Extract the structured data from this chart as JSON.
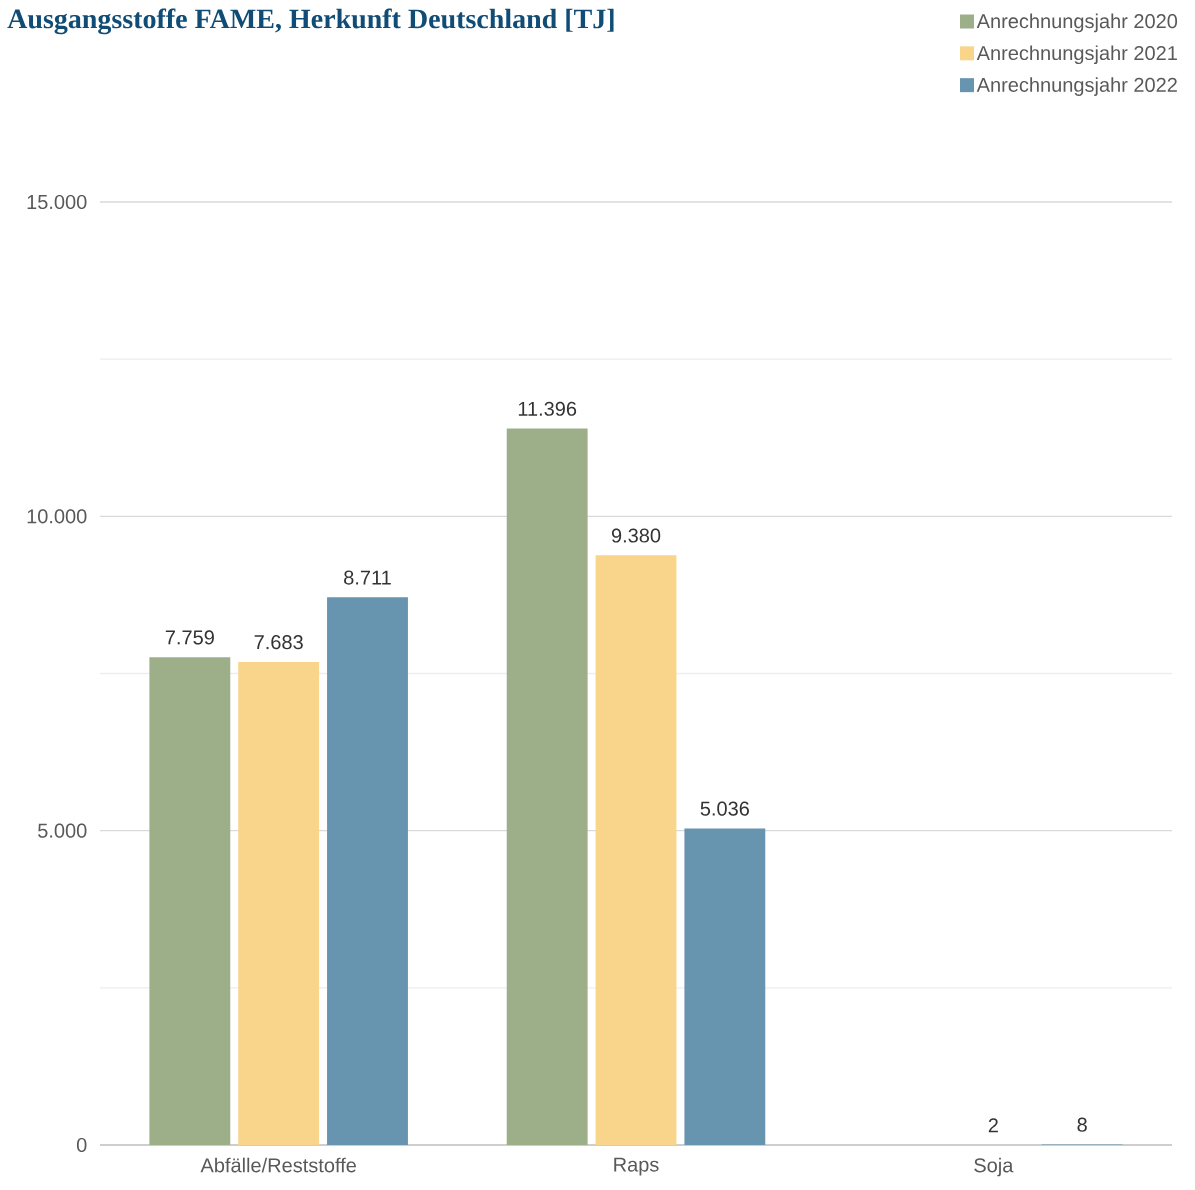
{
  "chart_data": {
    "type": "bar",
    "title": "Ausgangsstoffe FAME, Herkunft Deutschland [TJ]",
    "categories": [
      "Abfälle/Reststoffe",
      "Raps",
      "Soja"
    ],
    "series": [
      {
        "name": "Anrechnungsjahr 2020",
        "color": "#9caf88",
        "values": [
          7759,
          11396,
          null
        ],
        "value_labels": [
          "7.759",
          "11.396",
          null
        ]
      },
      {
        "name": "Anrechnungsjahr 2021",
        "color": "#f8d58b",
        "values": [
          7683,
          9380,
          2
        ],
        "value_labels": [
          "7.683",
          "9.380",
          "2"
        ]
      },
      {
        "name": "Anrechnungsjahr 2022",
        "color": "#6795b0",
        "values": [
          8711,
          5036,
          8
        ],
        "value_labels": [
          "8.711",
          "5.036",
          "8"
        ]
      }
    ],
    "ylim": [
      0,
      15000
    ],
    "yticks": [
      {
        "value": 0,
        "label": "0"
      },
      {
        "value": 2500,
        "label": null
      },
      {
        "value": 5000,
        "label": "5.000"
      },
      {
        "value": 7500,
        "label": null
      },
      {
        "value": 10000,
        "label": "10.000"
      },
      {
        "value": 12500,
        "label": null
      },
      {
        "value": 15000,
        "label": "15.000"
      }
    ],
    "grid": "y",
    "legend": "top right"
  }
}
